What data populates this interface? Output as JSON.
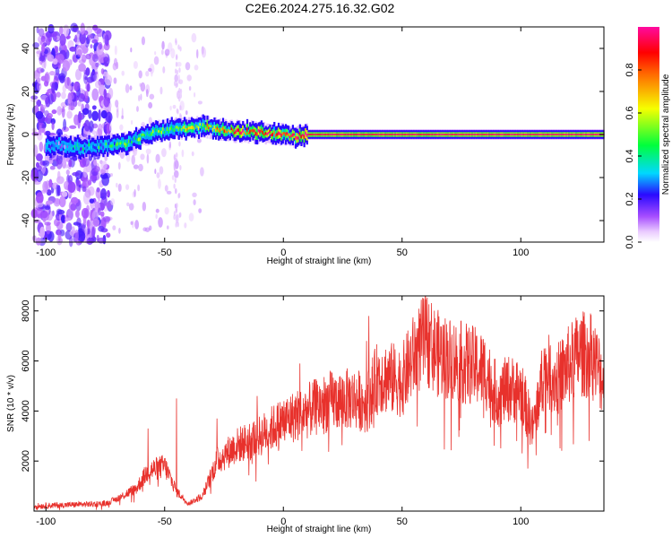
{
  "figure": {
    "title": "C2E6.2024.275.16.32.G02"
  },
  "chart_data": [
    {
      "type": "heatmap",
      "xlabel": "Height of straight line (km)",
      "ylabel": "Frequency (Hz)",
      "xlim": [
        -105,
        135
      ],
      "ylim": [
        -50,
        50
      ],
      "xticks": [
        -100,
        -50,
        0,
        50,
        100
      ],
      "yticks": [
        -40,
        -20,
        0,
        20,
        40
      ],
      "colorbar": {
        "label": "Normalized spectral amplitude",
        "range": [
          0,
          1
        ],
        "ticks": [
          0,
          0.2,
          0.4,
          0.6,
          0.8
        ],
        "colormap": "white-purple-blue-cyan-green-yellow-orange-red"
      },
      "ridge": {
        "description_points": [
          {
            "x": -95,
            "y": -5
          },
          {
            "x": -85,
            "y": -6
          },
          {
            "x": -75,
            "y": -5
          },
          {
            "x": -65,
            "y": -4
          },
          {
            "x": -60,
            "y": -1
          },
          {
            "x": -55,
            "y": 1
          },
          {
            "x": -50,
            "y": 2
          },
          {
            "x": -45,
            "y": 3
          },
          {
            "x": -40,
            "y": 3
          },
          {
            "x": -35,
            "y": 4
          },
          {
            "x": -30,
            "y": 3
          },
          {
            "x": -25,
            "y": 2
          },
          {
            "x": -20,
            "y": 1.5
          },
          {
            "x": -10,
            "y": 1
          },
          {
            "x": 0,
            "y": 0
          },
          {
            "x": 5,
            "y": -1
          },
          {
            "x": 10,
            "y": 0
          },
          {
            "x": 50,
            "y": 0
          },
          {
            "x": 100,
            "y": 0
          },
          {
            "x": 135,
            "y": 0
          }
        ],
        "amplitude": [
          {
            "x": -95,
            "v": 0.2
          },
          {
            "x": -75,
            "v": 0.35
          },
          {
            "x": -60,
            "v": 0.45
          },
          {
            "x": -45,
            "v": 0.55
          },
          {
            "x": -35,
            "v": 0.6
          },
          {
            "x": -20,
            "v": 0.85
          },
          {
            "x": 0,
            "v": 0.9
          },
          {
            "x": 20,
            "v": 0.95
          },
          {
            "x": 135,
            "v": 0.97
          }
        ]
      }
    },
    {
      "type": "line",
      "xlabel": "Height of straight line (km)",
      "ylabel": "SNR (10 * v/v)",
      "xlim": [
        -105,
        135
      ],
      "ylim": [
        0,
        8600
      ],
      "xticks": [
        -100,
        -50,
        0,
        50,
        100
      ],
      "yticks": [
        2000,
        4000,
        6000,
        8000
      ],
      "color": "#e8312c",
      "series": [
        {
          "envelope": [
            {
              "x": -105,
              "y": 200
            },
            {
              "x": -90,
              "y": 250
            },
            {
              "x": -75,
              "y": 300
            },
            {
              "x": -70,
              "y": 500
            },
            {
              "x": -62,
              "y": 900
            },
            {
              "x": -57,
              "y": 1600
            },
            {
              "x": -50,
              "y": 1800
            },
            {
              "x": -45,
              "y": 800
            },
            {
              "x": -40,
              "y": 300
            },
            {
              "x": -34,
              "y": 600
            },
            {
              "x": -28,
              "y": 2000
            },
            {
              "x": -20,
              "y": 2600
            },
            {
              "x": -10,
              "y": 3000
            },
            {
              "x": 0,
              "y": 3600
            },
            {
              "x": 10,
              "y": 4000
            },
            {
              "x": 20,
              "y": 4400
            },
            {
              "x": 30,
              "y": 4500
            },
            {
              "x": 35,
              "y": 4300
            },
            {
              "x": 40,
              "y": 5400
            },
            {
              "x": 50,
              "y": 5200
            },
            {
              "x": 55,
              "y": 6200
            },
            {
              "x": 60,
              "y": 6900
            },
            {
              "x": 65,
              "y": 6300
            },
            {
              "x": 70,
              "y": 6100
            },
            {
              "x": 80,
              "y": 5800
            },
            {
              "x": 85,
              "y": 5600
            },
            {
              "x": 90,
              "y": 4600
            },
            {
              "x": 95,
              "y": 4900
            },
            {
              "x": 100,
              "y": 4800
            },
            {
              "x": 105,
              "y": 3300
            },
            {
              "x": 110,
              "y": 5700
            },
            {
              "x": 115,
              "y": 5200
            },
            {
              "x": 120,
              "y": 5800
            },
            {
              "x": 125,
              "y": 6300
            },
            {
              "x": 130,
              "y": 6200
            },
            {
              "x": 135,
              "y": 5200
            }
          ],
          "peaks": [
            {
              "x": -57,
              "y": 3300
            },
            {
              "x": -45,
              "y": 4500
            },
            {
              "x": -28,
              "y": 3700
            },
            {
              "x": -11,
              "y": 4600
            },
            {
              "x": 7,
              "y": 5900
            },
            {
              "x": 35,
              "y": 6800
            },
            {
              "x": 36,
              "y": 7800
            },
            {
              "x": 59,
              "y": 8500
            },
            {
              "x": 62,
              "y": 7400
            },
            {
              "x": 103,
              "y": 1700
            },
            {
              "x": 133,
              "y": 6900
            }
          ]
        }
      ]
    }
  ]
}
